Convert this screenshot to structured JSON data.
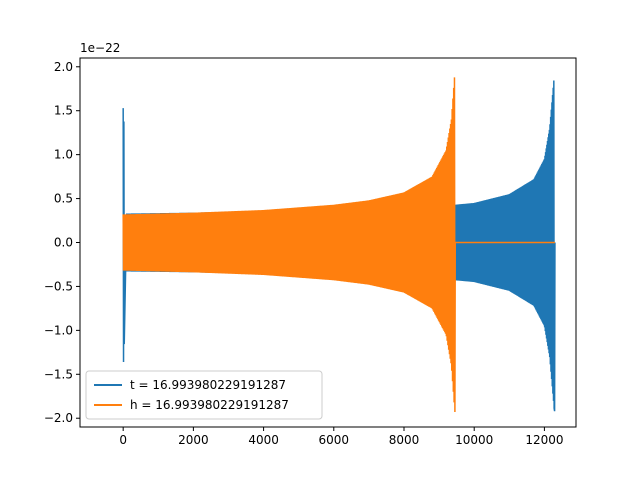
{
  "chart_data": {
    "type": "line",
    "title": "",
    "xlabel": "",
    "ylabel": "",
    "y_offset_label": "1e−22",
    "xlim": [
      -1230,
      12900
    ],
    "ylim": [
      -2.1,
      2.1
    ],
    "x_ticks": [
      0,
      2000,
      4000,
      6000,
      8000,
      10000,
      12000
    ],
    "x_tick_labels": [
      "0",
      "2000",
      "4000",
      "6000",
      "8000",
      "10000",
      "12000"
    ],
    "y_ticks": [
      2.0,
      1.5,
      1.0,
      0.5,
      0.0,
      -0.5,
      -1.0,
      -1.5,
      -2.0
    ],
    "y_tick_labels": [
      "2.0",
      "1.5",
      "1.0",
      "0.5",
      "0.0",
      "−0.5",
      "−1.0",
      "−1.5",
      "−2.0"
    ],
    "grid": false,
    "legend_position": "lower-left",
    "series": [
      {
        "name": "t = 16.993980229191287",
        "color": "#1f77b4",
        "description_points": {
          "initial_spike": {
            "x": 0,
            "max": 1.53,
            "min": -1.36
          },
          "envelope": [
            [
              100,
              0.33
            ],
            [
              2000,
              0.34
            ],
            [
              4000,
              0.36
            ],
            [
              6000,
              0.38
            ],
            [
              8000,
              0.41
            ],
            [
              9450,
              0.43
            ],
            [
              10000,
              0.45
            ],
            [
              11000,
              0.55
            ],
            [
              11700,
              0.72
            ],
            [
              12000,
              0.95
            ],
            [
              12150,
              1.3
            ],
            [
              12280,
              1.9
            ]
          ],
          "end_x": 12300,
          "final_min": -1.92
        }
      },
      {
        "name": "h = 16.993980229191287",
        "color": "#ff7f0e",
        "description_points": {
          "envelope": [
            [
              0,
              0.32
            ],
            [
              2000,
              0.34
            ],
            [
              4000,
              0.37
            ],
            [
              6000,
              0.43
            ],
            [
              7000,
              0.48
            ],
            [
              8000,
              0.57
            ],
            [
              8800,
              0.75
            ],
            [
              9200,
              1.05
            ],
            [
              9350,
              1.4
            ],
            [
              9440,
              1.89
            ]
          ],
          "final_min": -1.93,
          "flat_after": [
            9460,
            12300
          ],
          "flat_value": 0.0
        }
      }
    ]
  }
}
